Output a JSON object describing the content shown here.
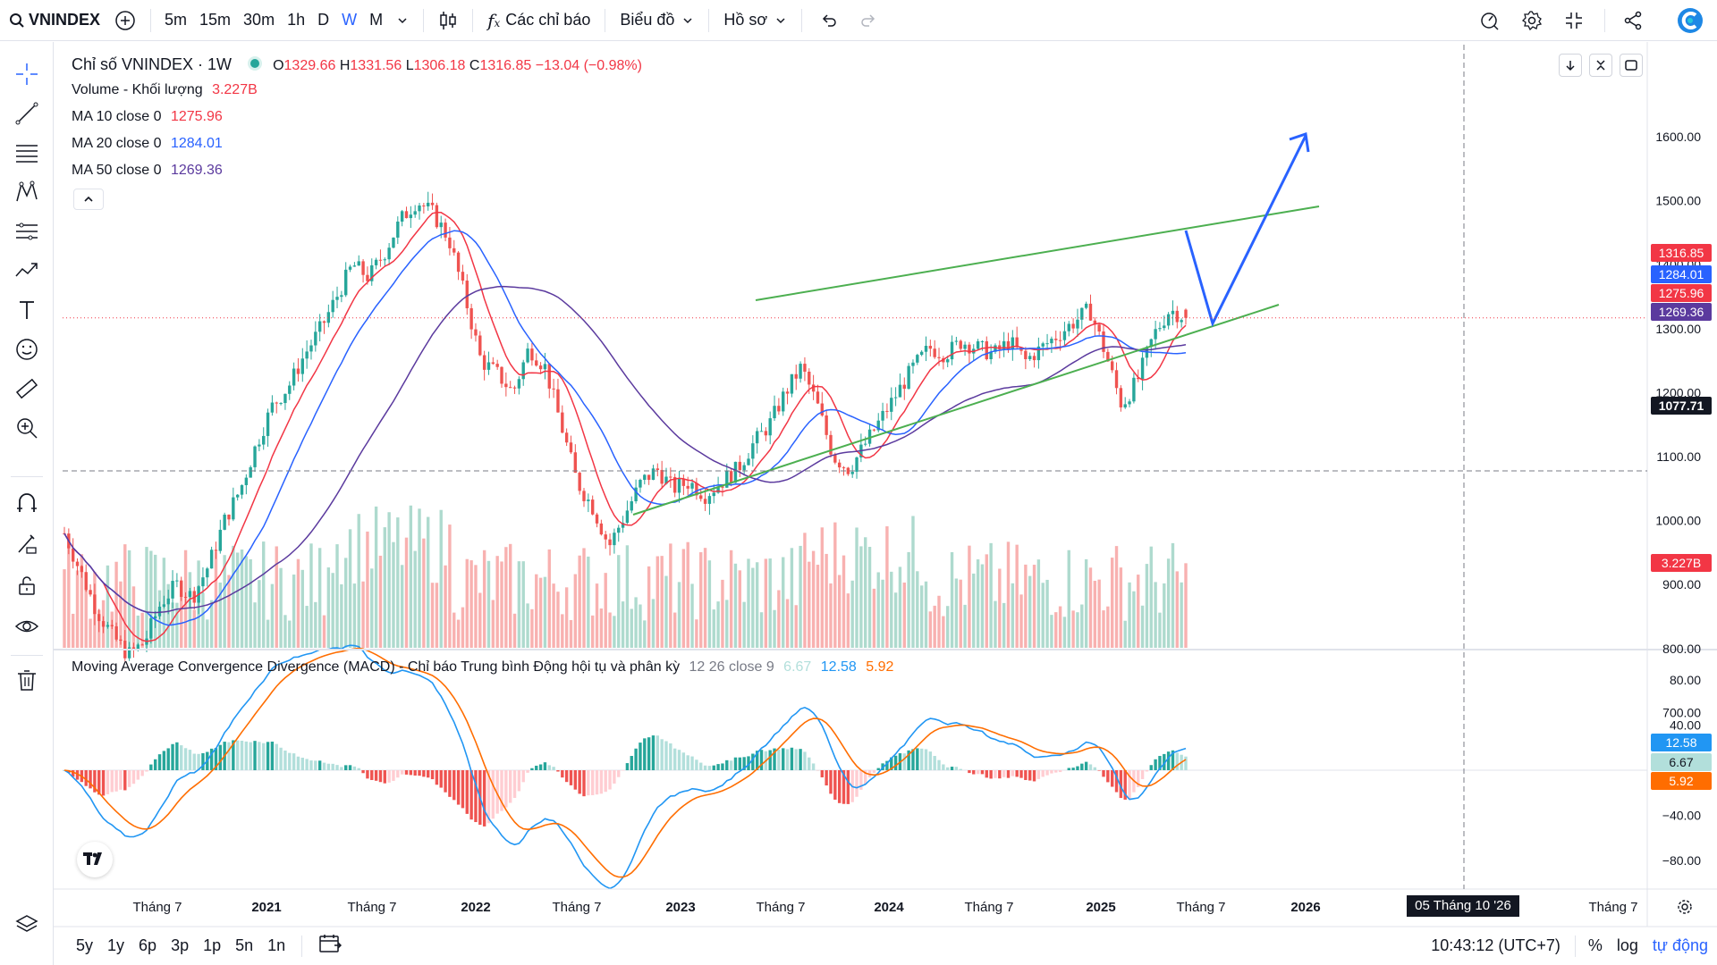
{
  "toolbar": {
    "symbol": "VNINDEX",
    "timeframes": [
      "5m",
      "15m",
      "30m",
      "1h",
      "D",
      "W",
      "M"
    ],
    "active_timeframe": "W",
    "indicators_label": "Các chỉ báo",
    "chart_type_label": "Biểu đồ",
    "profile_label": "Hồ sơ"
  },
  "legend": {
    "title": "Chỉ số VNINDEX · 1W",
    "ohlc": {
      "o": "1329.66",
      "h": "1331.56",
      "l": "1306.18",
      "c": "1316.85",
      "change": "−13.04 (−0.98%)"
    },
    "volume_label": "Volume - Khối lượng",
    "volume_value": "3.227B",
    "ma10_label": "MA 10 close 0",
    "ma10_value": "1275.96",
    "ma20_label": "MA 20 close 0",
    "ma20_value": "1284.01",
    "ma50_label": "MA 50 close 0",
    "ma50_value": "1269.36"
  },
  "macd_legend": {
    "label": "Moving Average Convergence Divergence (MACD) - Chỉ báo Trung bình Động hội tụ và phân kỳ",
    "params": "12 26 close 9",
    "hist": "6.67",
    "macd": "12.58",
    "signal": "5.92"
  },
  "price_axis": [
    "1600.00",
    "1500.00",
    "1400.00",
    "1300.00",
    "1200.00",
    "1100.00",
    "1000.00",
    "900.00",
    "800.00",
    "700.00"
  ],
  "macd_axis": [
    "80.00",
    "40.00",
    "0.00",
    "−40.00",
    "−80.00"
  ],
  "price_tags": {
    "last": "1316.85",
    "ma20": "1284.01",
    "ma10": "1275.96",
    "ma50": "1269.36",
    "crosshair": "1077.71",
    "volume": "3.227B",
    "macd": "12.58",
    "hist": "6.67",
    "signal": "5.92"
  },
  "time_axis": [
    "Tháng 7",
    "2021",
    "Tháng 7",
    "2022",
    "Tháng 7",
    "2023",
    "Tháng 7",
    "2024",
    "Tháng 7",
    "2025",
    "Tháng 7",
    "2026",
    "Tháng 7"
  ],
  "crosshair_date": "05 Tháng 10 '26",
  "bottom": {
    "ranges": [
      "5y",
      "1y",
      "6p",
      "3p",
      "1p",
      "5n",
      "1n"
    ],
    "time": "10:43:12 (UTC+7)",
    "percent": "%",
    "log": "log",
    "auto": "tự động"
  },
  "colors": {
    "up": "#26a69a",
    "down": "#ef5350",
    "ma10": "#f23645",
    "ma20": "#2962ff",
    "ma50": "#5b3a9e",
    "trend": "#4caf50",
    "arrow": "#2962ff",
    "macd": "#2196f3",
    "signal": "#ff6d00"
  },
  "chart_data": {
    "type": "candlestick",
    "weekly_close_approx": [
      980,
      920,
      860,
      820,
      790,
      810,
      870,
      900,
      880,
      930,
      1000,
      1050,
      1120,
      1180,
      1210,
      1260,
      1300,
      1350,
      1400,
      1380,
      1420,
      1470,
      1500,
      1480,
      1440,
      1350,
      1250,
      1230,
      1200,
      1270,
      1240,
      1150,
      1060,
      1020,
      960,
      1010,
      1060,
      1080,
      1050,
      1060,
      1040,
      1060,
      1080,
      1120,
      1150,
      1200,
      1240,
      1180,
      1100,
      1080,
      1120,
      1160,
      1200,
      1240,
      1270,
      1260,
      1280,
      1270,
      1260,
      1280,
      1250,
      1270,
      1290,
      1310,
      1330,
      1260,
      1180,
      1220,
      1290,
      1330,
      1316.85
    ],
    "ma10_last": 1275.96,
    "ma20_last": 1284.01,
    "ma50_last": 1269.36,
    "ylim": [
      700,
      1600
    ],
    "trend_upper": [
      [
        2023.5,
        1250
      ],
      [
        2025.9,
        1390
      ]
    ],
    "trend_lower": [
      [
        2022.75,
        915
      ],
      [
        2025.8,
        1235
      ]
    ],
    "macd_ylim": [
      -90,
      90
    ]
  }
}
